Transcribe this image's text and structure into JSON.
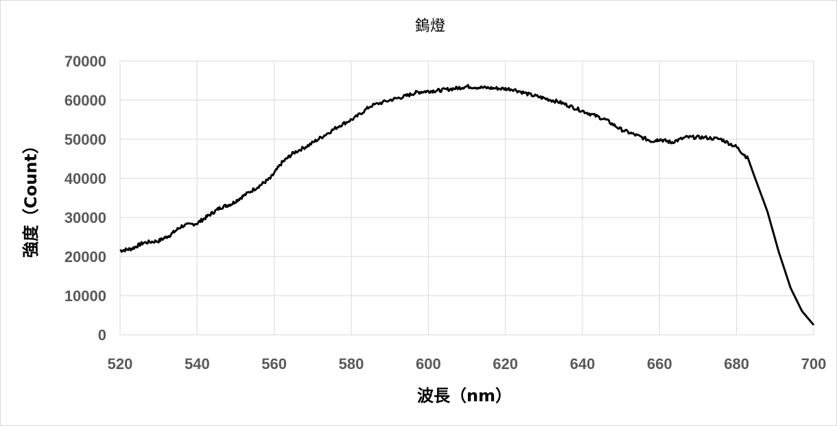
{
  "chart_data": {
    "type": "line",
    "title": "鎢燈",
    "xlabel": "波長（nm）",
    "ylabel": "強度（Count）",
    "xlim": [
      520,
      700
    ],
    "ylim": [
      0,
      70000
    ],
    "xticks": [
      520,
      540,
      560,
      580,
      600,
      620,
      640,
      660,
      680,
      700
    ],
    "yticks": [
      0,
      10000,
      20000,
      30000,
      40000,
      50000,
      60000,
      70000
    ],
    "grid": true,
    "legend": "none",
    "line_color": "#000000",
    "series": [
      {
        "x": [
          520,
          523,
          526,
          530,
          533,
          536,
          540,
          543,
          546,
          549,
          552,
          556,
          559,
          562,
          565,
          569,
          573,
          577,
          581,
          585,
          590,
          594,
          597,
          600,
          603,
          607,
          610,
          614,
          618,
          622,
          626,
          630,
          634,
          638,
          642,
          646,
          650,
          654,
          658,
          660,
          663,
          667,
          671,
          676,
          680,
          683,
          685,
          688,
          691,
          694,
          697,
          700
        ],
        "y": [
          21500,
          22000,
          23500,
          24000,
          25500,
          27800,
          28500,
          30500,
          32500,
          33500,
          35500,
          38000,
          40000,
          44000,
          46500,
          48500,
          51000,
          53500,
          55500,
          58500,
          60000,
          61000,
          62000,
          62300,
          62500,
          63000,
          63500,
          63200,
          63000,
          62800,
          61500,
          60500,
          59500,
          58000,
          56500,
          55000,
          52500,
          51000,
          49500,
          50000,
          49200,
          50500,
          50500,
          50000,
          48000,
          45000,
          39500,
          31500,
          21000,
          12000,
          6000,
          2500
        ]
      }
    ]
  }
}
